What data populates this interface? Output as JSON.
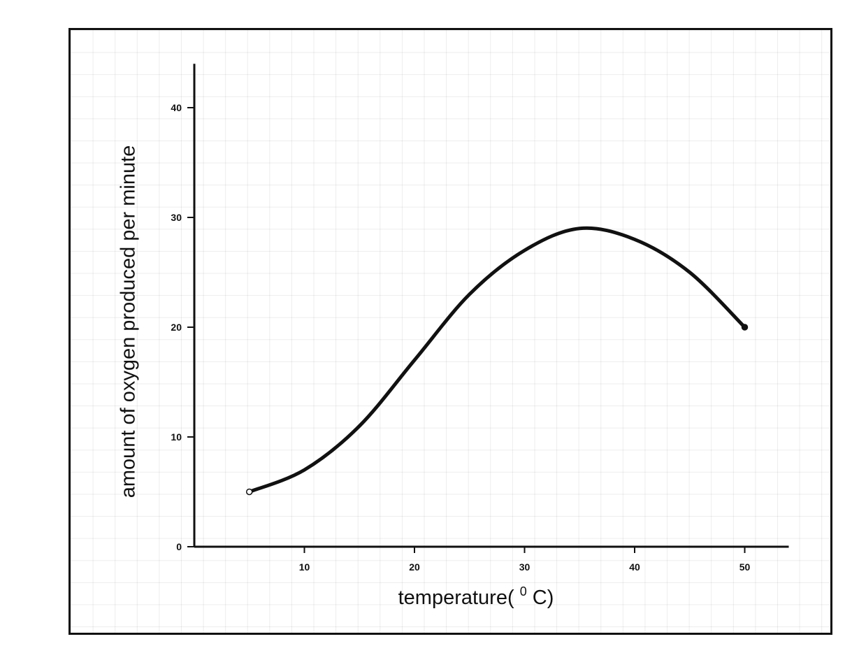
{
  "chart_data": {
    "type": "line",
    "title": "",
    "xlabel": "temperature(",
    "xlabel_sup": "0",
    "xlabel_unit": "C)",
    "ylabel": "amount of oxygen produced per minute",
    "xlim": [
      0,
      54
    ],
    "ylim": [
      0,
      44
    ],
    "xticks": [
      "10",
      "20",
      "30",
      "40",
      "50"
    ],
    "yticks": [
      "0",
      "10",
      "20",
      "30",
      "40"
    ],
    "grid": false,
    "series": [
      {
        "x": [
          5,
          10,
          15,
          20,
          25,
          30,
          35,
          40,
          45,
          50
        ],
        "y": [
          5,
          7,
          11,
          17,
          23,
          27,
          29,
          28,
          25,
          20
        ]
      }
    ],
    "colors": {
      "line": "#111111",
      "axis": "#111111"
    }
  }
}
